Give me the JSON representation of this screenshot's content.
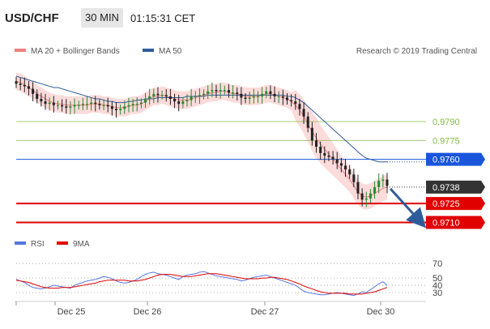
{
  "header": {
    "symbol": "USD/CHF",
    "timeframe": "30 MIN",
    "time": "01:15:31 CET"
  },
  "chart_data": [
    {
      "type": "candlestick",
      "legend": [
        {
          "label": "MA 20 + Bollinger Bands",
          "color": "#f08080"
        },
        {
          "label": "MA 50",
          "color": "#2e5c9a"
        }
      ],
      "credit": "Research © 2019 Trading Central",
      "x_tick_labels": [
        "Dec 25",
        "Dec 26",
        "Dec 27",
        "Dec 30"
      ],
      "ylim": [
        0.97,
        0.9835
      ],
      "levels": [
        {
          "value": 0.979,
          "label": "0.9790",
          "kind": "resistance",
          "color": "#7fba3c"
        },
        {
          "value": 0.9775,
          "label": "0.9775",
          "kind": "resistance",
          "color": "#7fba3c"
        },
        {
          "value": 0.976,
          "label": "0.9760",
          "kind": "pivot",
          "color": "#1a56db"
        },
        {
          "value": 0.9738,
          "label": "0.9738",
          "kind": "last-price",
          "color": "#333333"
        },
        {
          "value": 0.9725,
          "label": "0.9725",
          "kind": "support",
          "color": "#e00000"
        },
        {
          "value": 0.971,
          "label": "0.9710",
          "kind": "support",
          "color": "#e00000"
        }
      ],
      "forecast_arrow": {
        "from": 0.9738,
        "to": 0.971,
        "direction": "down"
      },
      "close_series": [
        0.982,
        0.9819,
        0.9818,
        0.9816,
        0.9812,
        0.9808,
        0.9806,
        0.9804,
        0.9805,
        0.9803,
        0.9803,
        0.9802,
        0.9801,
        0.9802,
        0.9803,
        0.9803,
        0.9804,
        0.9804,
        0.9805,
        0.9804,
        0.9803,
        0.9803,
        0.9802,
        0.98,
        0.9799,
        0.98,
        0.9802,
        0.9803,
        0.9804,
        0.9804,
        0.9805,
        0.9808,
        0.981,
        0.9812,
        0.9811,
        0.9811,
        0.981,
        0.9808,
        0.9806,
        0.9804,
        0.9806,
        0.9807,
        0.981,
        0.981,
        0.9811,
        0.9812,
        0.9814,
        0.9815,
        0.9814,
        0.9815,
        0.9815,
        0.9813,
        0.9813,
        0.9812,
        0.9809,
        0.9808,
        0.9809,
        0.981,
        0.981,
        0.9812,
        0.9814,
        0.9812,
        0.981,
        0.981,
        0.9809,
        0.9807,
        0.9806,
        0.9804,
        0.98,
        0.9794,
        0.9785,
        0.9775,
        0.977,
        0.9765,
        0.9763,
        0.9762,
        0.976,
        0.9757,
        0.9755,
        0.9752,
        0.9748,
        0.9742,
        0.9733,
        0.9728,
        0.9729,
        0.9733,
        0.9738,
        0.9743,
        0.9744,
        0.9739
      ],
      "ma20_series": [
        0.9822,
        0.9821,
        0.9819,
        0.9817,
        0.9815,
        0.9812,
        0.981,
        0.9808,
        0.9806,
        0.9805,
        0.9804,
        0.9804,
        0.9803,
        0.9803,
        0.9803,
        0.9803,
        0.9803,
        0.9803,
        0.9804,
        0.9804,
        0.9804,
        0.9803,
        0.9803,
        0.9802,
        0.9801,
        0.9801,
        0.9801,
        0.9802,
        0.9803,
        0.9803,
        0.9804,
        0.9806,
        0.9808,
        0.981,
        0.981,
        0.9811,
        0.981,
        0.9809,
        0.9808,
        0.9807,
        0.9807,
        0.9807,
        0.9808,
        0.9809,
        0.981,
        0.9811,
        0.9812,
        0.9813,
        0.9813,
        0.9814,
        0.9814,
        0.9813,
        0.9812,
        0.9812,
        0.9811,
        0.981,
        0.981,
        0.981,
        0.981,
        0.9811,
        0.9812,
        0.9812,
        0.9811,
        0.981,
        0.9809,
        0.9808,
        0.9806,
        0.9803,
        0.9799,
        0.9794,
        0.9788,
        0.9782,
        0.9777,
        0.9772,
        0.9768,
        0.9764,
        0.976,
        0.9756,
        0.9752,
        0.9748,
        0.9744,
        0.9739,
        0.9734,
        0.9731,
        0.973,
        0.9731,
        0.9733,
        0.9735,
        0.9737,
        0.9738
      ],
      "ma50_series": [
        0.9826,
        0.9825,
        0.9824,
        0.9823,
        0.9822,
        0.9821,
        0.982,
        0.9819,
        0.9818,
        0.9817,
        0.9817,
        0.9816,
        0.9815,
        0.9814,
        0.9813,
        0.9812,
        0.9811,
        0.981,
        0.9809,
        0.9808,
        0.9808,
        0.9807,
        0.9806,
        0.9806,
        0.9805,
        0.9805,
        0.9805,
        0.9806,
        0.9806,
        0.9807,
        0.9807,
        0.9808,
        0.9808,
        0.9808,
        0.9809,
        0.9809,
        0.9809,
        0.9809,
        0.9809,
        0.9809,
        0.9809,
        0.981,
        0.981,
        0.981,
        0.981,
        0.981,
        0.9811,
        0.9811,
        0.9811,
        0.9811,
        0.9811,
        0.9811,
        0.9811,
        0.9811,
        0.9811,
        0.9811,
        0.9811,
        0.9811,
        0.9811,
        0.9811,
        0.9811,
        0.9811,
        0.9811,
        0.9811,
        0.9811,
        0.981,
        0.981,
        0.9809,
        0.9807,
        0.9805,
        0.9802,
        0.9799,
        0.9796,
        0.9793,
        0.979,
        0.9787,
        0.9784,
        0.9781,
        0.9778,
        0.9775,
        0.9772,
        0.9769,
        0.9766,
        0.9763,
        0.9761,
        0.976,
        0.9759,
        0.9758,
        0.9758,
        0.9758
      ]
    },
    {
      "type": "line",
      "legend": [
        {
          "label": "RSI",
          "color": "#5577dd"
        },
        {
          "label": "9MA",
          "color": "#e00000"
        }
      ],
      "y_tick_labels": [
        "70",
        "50",
        "40",
        "30"
      ],
      "ylim": [
        20,
        78
      ],
      "rsi_series": [
        48,
        46,
        44,
        40,
        37,
        36,
        35,
        36,
        38,
        40,
        39,
        38,
        37,
        36,
        40,
        42,
        44,
        46,
        47,
        48,
        50,
        52,
        51,
        49,
        46,
        44,
        43,
        44,
        46,
        48,
        52,
        55,
        57,
        58,
        56,
        55,
        54,
        52,
        50,
        48,
        52,
        54,
        55,
        56,
        58,
        59,
        57,
        55,
        53,
        52,
        51,
        50,
        49,
        48,
        46,
        47,
        49,
        51,
        52,
        53,
        54,
        52,
        50,
        48,
        46,
        44,
        42,
        40,
        36,
        32,
        30,
        29,
        28,
        27,
        27,
        28,
        29,
        30,
        29,
        28,
        27,
        26,
        28,
        31,
        30,
        34,
        38,
        42,
        45,
        40
      ],
      "ma9_series": [
        47,
        46,
        45,
        44,
        42,
        40,
        38,
        37,
        36,
        36,
        36,
        37,
        37,
        37,
        38,
        39,
        40,
        41,
        42,
        43,
        45,
        46,
        47,
        47,
        47,
        47,
        47,
        46,
        46,
        46,
        47,
        48,
        50,
        52,
        54,
        55,
        55,
        55,
        54,
        53,
        52,
        52,
        52,
        53,
        54,
        55,
        56,
        56,
        56,
        55,
        54,
        53,
        52,
        51,
        50,
        49,
        49,
        49,
        49,
        50,
        50,
        51,
        51,
        50,
        49,
        48,
        46,
        44,
        42,
        39,
        37,
        35,
        33,
        31,
        30,
        29,
        29,
        29,
        29,
        29,
        28,
        28,
        28,
        28,
        29,
        30,
        31,
        33,
        35,
        37
      ]
    }
  ]
}
